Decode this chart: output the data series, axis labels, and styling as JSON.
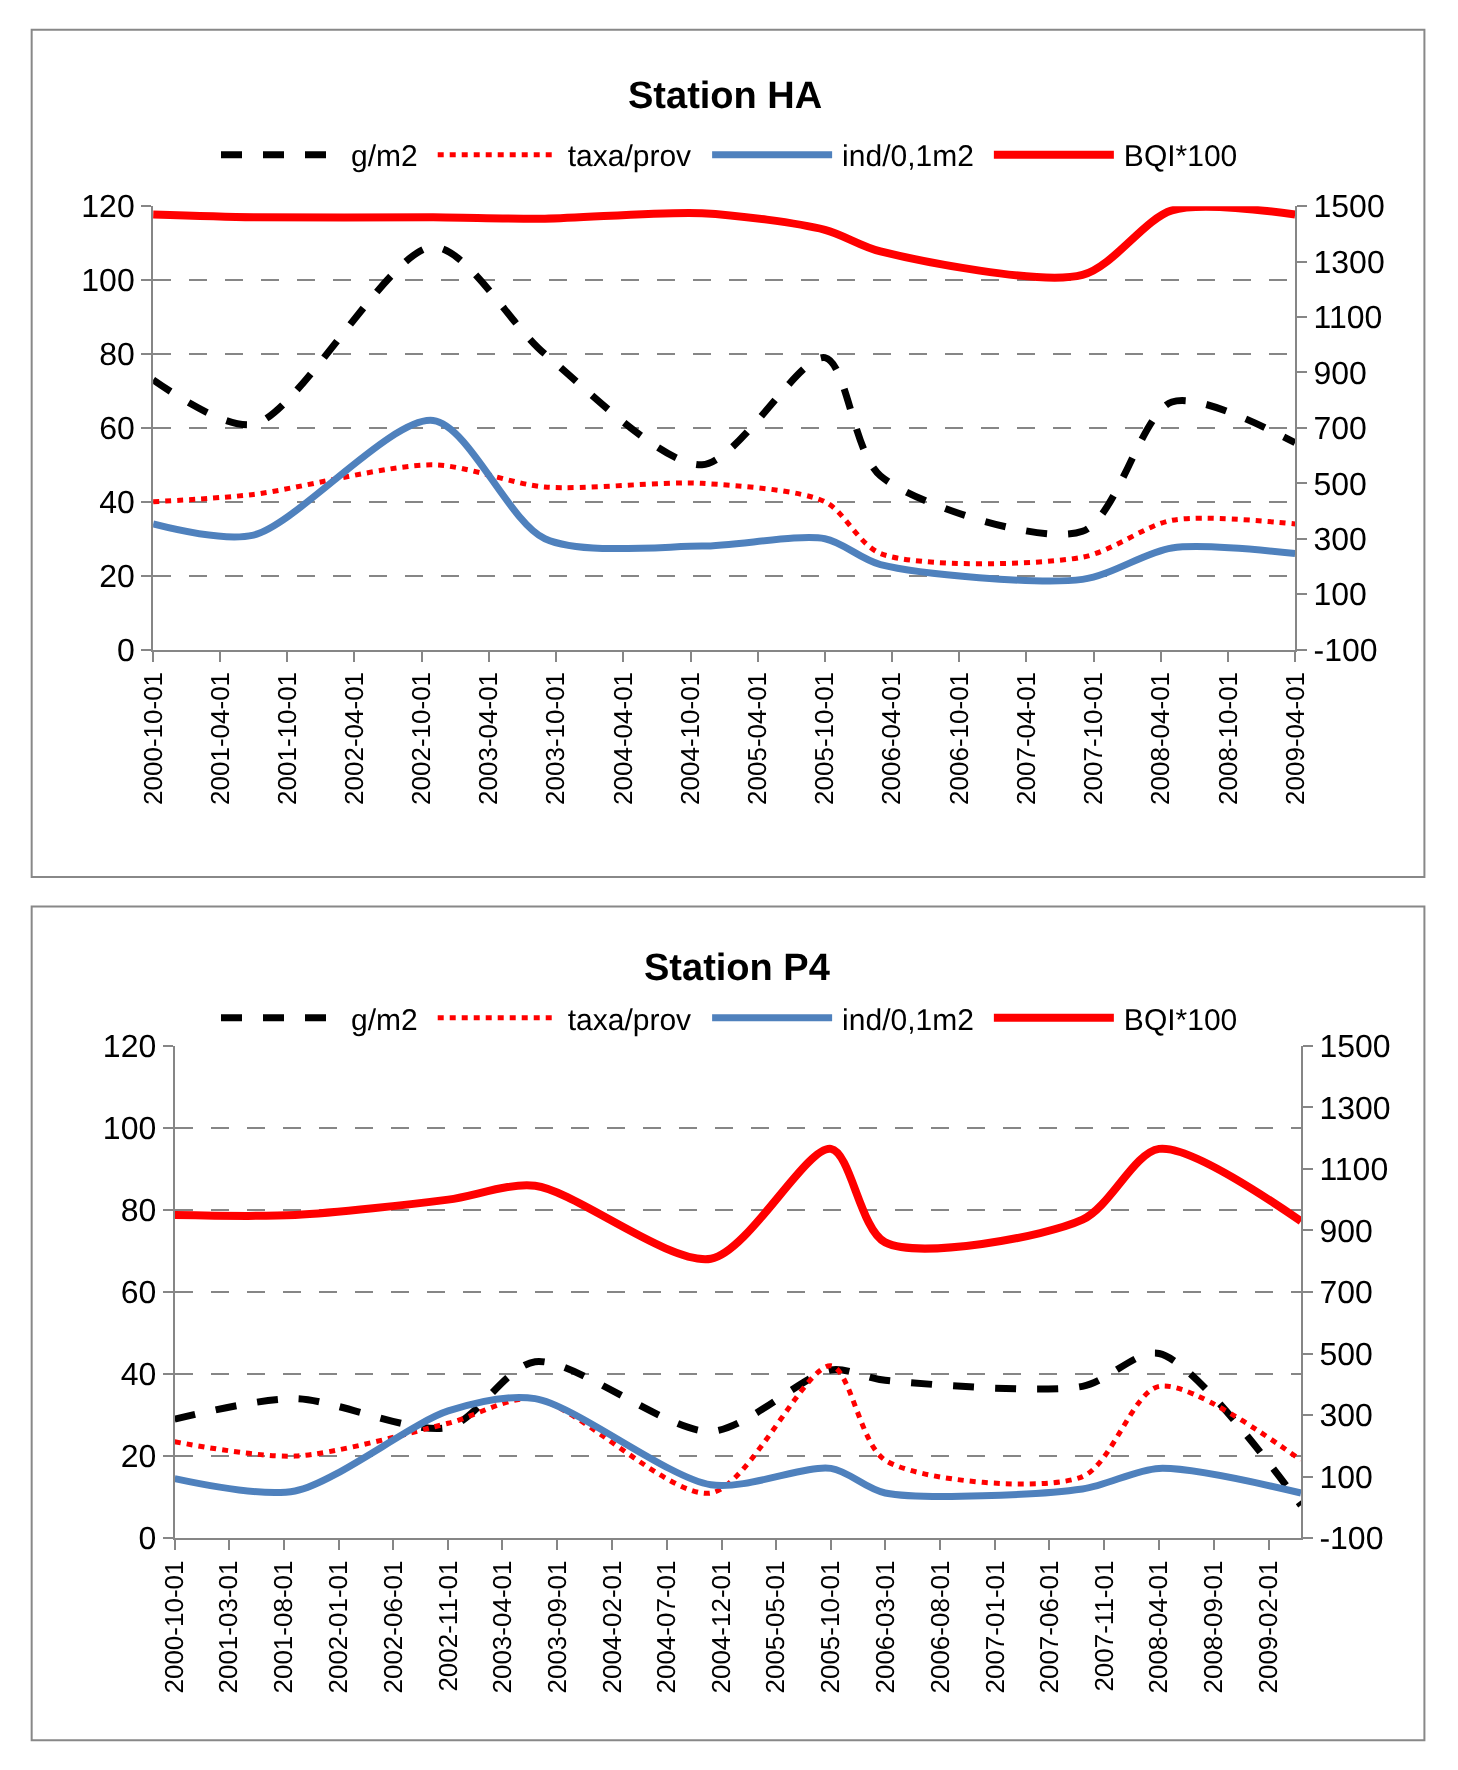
{
  "chart_data": [
    {
      "type": "line",
      "title": "Station HA",
      "x": [
        "2000-10",
        "2001-07",
        "2002-11",
        "2003-09",
        "2004-11",
        "2005-10",
        "2006-03",
        "2007-09",
        "2008-05",
        "2009-04"
      ],
      "xlim": [
        "2000-10-01",
        "2009-04-01"
      ],
      "xticks": [
        "2000-10-01",
        "2001-04-01",
        "2001-10-01",
        "2002-04-01",
        "2002-10-01",
        "2003-04-01",
        "2003-10-01",
        "2004-04-01",
        "2004-10-01",
        "2005-04-01",
        "2005-10-01",
        "2006-04-01",
        "2006-10-01",
        "2007-04-01",
        "2007-10-01",
        "2008-04-01",
        "2008-10-01",
        "2009-04-01"
      ],
      "ylim": [
        0,
        120
      ],
      "yticks": [
        0,
        20,
        40,
        60,
        80,
        100,
        120
      ],
      "y2lim": [
        -100,
        1500
      ],
      "y2ticks": [
        -100,
        100,
        300,
        500,
        700,
        900,
        1100,
        1300,
        1500
      ],
      "grid": "y",
      "legend": "top",
      "series": [
        {
          "name": "g/m2",
          "color": "#000000",
          "line_style": "dashed",
          "values": [
            73,
            61,
            109,
            80,
            50,
            79,
            47,
            32,
            67,
            56
          ]
        },
        {
          "name": "taxa/prov",
          "color": "#ff0000",
          "line_style": "dotted",
          "values": [
            40,
            42,
            50,
            44,
            45,
            40,
            26,
            25,
            35,
            34
          ]
        },
        {
          "name": "ind/0,1m2",
          "color": "#4f81bd",
          "line_style": "solid",
          "values": [
            34,
            31,
            62,
            30,
            28,
            30,
            23,
            19,
            27.5,
            26
          ]
        },
        {
          "name": "BQI*100",
          "color": "#ff0000",
          "line_style": "solid",
          "axis": "y2",
          "values": [
            1470,
            1460,
            1460,
            1455,
            1475,
            1415,
            1337,
            1252,
            1485,
            1470
          ]
        }
      ]
    },
    {
      "type": "line",
      "title": "Station P4",
      "x": [
        "2000-10",
        "2001-09",
        "2002-11",
        "2003-07",
        "2004-11",
        "2005-10",
        "2006-03",
        "2007-09",
        "2008-04",
        "2009-05"
      ],
      "xlim": [
        "2000-10-01",
        "2009-05-01"
      ],
      "xticks": [
        "2000-10-01",
        "2001-03-01",
        "2001-08-01",
        "2002-01-01",
        "2002-06-01",
        "2002-11-01",
        "2003-04-01",
        "2003-09-01",
        "2004-02-01",
        "2004-07-01",
        "2004-12-01",
        "2005-05-01",
        "2005-10-01",
        "2006-03-01",
        "2006-08-01",
        "2007-01-01",
        "2007-06-01",
        "2007-11-01",
        "2008-04-01",
        "2008-09-01",
        "2009-02-01"
      ],
      "ylim": [
        0,
        120
      ],
      "yticks": [
        0,
        20,
        40,
        60,
        80,
        100,
        120
      ],
      "y2lim": [
        -100,
        1500
      ],
      "y2ticks": [
        -100,
        100,
        300,
        500,
        700,
        900,
        1100,
        1300,
        1500
      ],
      "grid": "y",
      "legend": "top",
      "series": [
        {
          "name": "g/m2",
          "color": "#000000",
          "line_style": "dashed",
          "values": [
            29,
            34,
            27,
            43,
            26,
            41,
            38.5,
            37,
            45,
            8
          ]
        },
        {
          "name": "taxa/prov",
          "color": "#ff0000",
          "line_style": "dotted",
          "values": [
            23.5,
            20,
            28,
            34,
            11,
            42,
            19,
            15,
            37,
            19
          ]
        },
        {
          "name": "ind/0,1m2",
          "color": "#4f81bd",
          "line_style": "solid",
          "values": [
            14.5,
            11.5,
            31,
            34,
            13,
            17,
            11,
            12,
            17,
            11
          ]
        },
        {
          "name": "BQI*100",
          "color": "#ff0000",
          "line_style": "solid",
          "axis": "y2",
          "values": [
            950,
            950,
            1000,
            1045,
            808,
            1165,
            861,
            935,
            1165,
            930
          ]
        }
      ]
    }
  ]
}
